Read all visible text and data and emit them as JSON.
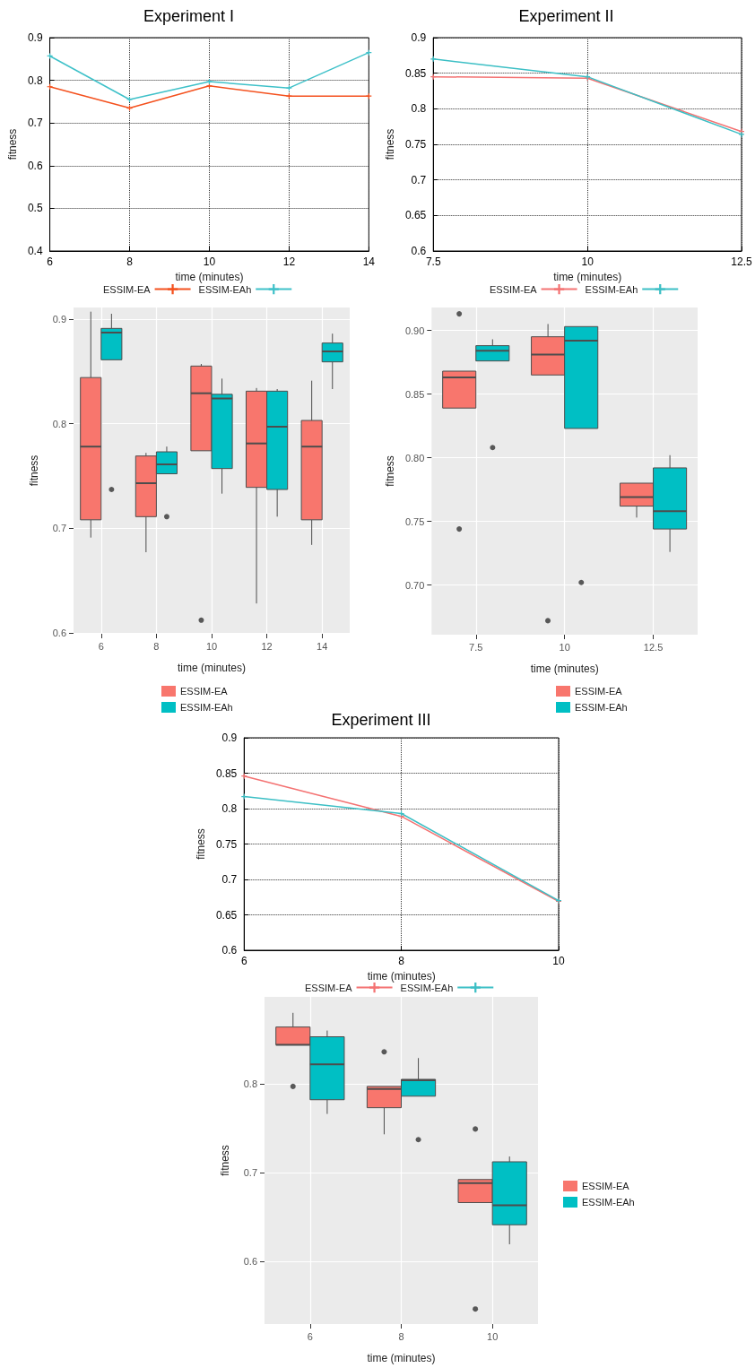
{
  "chart_data": [
    {
      "type": "line",
      "title": "Experiment I",
      "xlabel": "time (minutes)",
      "ylabel": "fitness",
      "x": [
        6,
        8,
        10,
        12,
        14
      ],
      "xlim": [
        6,
        14
      ],
      "xticks": [
        6,
        8,
        10,
        12,
        14
      ],
      "ylim": [
        0.4,
        0.9
      ],
      "yticks": [
        0.4,
        0.5,
        0.6,
        0.7,
        0.8,
        0.9
      ],
      "grid": true,
      "legend": "bottom",
      "marker": "cross",
      "line_style": "solid",
      "series": [
        {
          "name": "ESSIM-EA",
          "color": "#f4511e",
          "values": [
            0.785,
            0.735,
            0.787,
            0.763,
            0.763
          ]
        },
        {
          "name": "ESSIM-EAh",
          "color": "#3fc1c9",
          "values": [
            0.857,
            0.755,
            0.797,
            0.782,
            0.865
          ]
        }
      ]
    },
    {
      "type": "line",
      "title": "Experiment II",
      "xlabel": "time (minutes)",
      "ylabel": "fitness",
      "x": [
        7.5,
        10,
        12.5
      ],
      "xlim": [
        7.5,
        12.5
      ],
      "xticks": [
        7.5,
        10,
        12.5
      ],
      "ylim": [
        0.6,
        0.9
      ],
      "yticks": [
        0.6,
        0.65,
        0.7,
        0.75,
        0.8,
        0.85,
        0.9
      ],
      "grid": true,
      "legend": "bottom",
      "marker": "cross",
      "line_style": "solid",
      "series": [
        {
          "name": "ESSIM-EA",
          "color": "#f47272",
          "values": [
            0.845,
            0.843,
            0.768
          ]
        },
        {
          "name": "ESSIM-EAh",
          "color": "#3cbfc5",
          "values": [
            0.87,
            0.845,
            0.764
          ]
        }
      ]
    },
    {
      "type": "box",
      "xlabel": "time (minutes)",
      "ylabel": "fitness",
      "categories": [
        "6",
        "8",
        "10",
        "12",
        "14"
      ],
      "ylim": [
        0.599,
        0.911
      ],
      "yticks": [
        0.6,
        0.7,
        0.8,
        0.9
      ],
      "grid": true,
      "legend": "bottom",
      "series": [
        {
          "name": "ESSIM-EA",
          "color": "#f8766d",
          "boxes": [
            {
              "low": 0.691,
              "q1": 0.708,
              "median": 0.778,
              "q3": 0.844,
              "high": 0.907
            },
            {
              "low": 0.677,
              "q1": 0.711,
              "median": 0.743,
              "q3": 0.769,
              "high": 0.772
            },
            {
              "low": 0.774,
              "q1": 0.774,
              "median": 0.829,
              "q3": 0.855,
              "high": 0.857,
              "outliers": [
                0.612
              ]
            },
            {
              "low": 0.628,
              "q1": 0.739,
              "median": 0.781,
              "q3": 0.831,
              "high": 0.834
            },
            {
              "low": 0.684,
              "q1": 0.708,
              "median": 0.778,
              "q3": 0.803,
              "high": 0.841
            }
          ]
        },
        {
          "name": "ESSIM-EAh",
          "color": "#00bfc4",
          "boxes": [
            {
              "low": 0.861,
              "q1": 0.861,
              "median": 0.887,
              "q3": 0.891,
              "high": 0.905,
              "outliers": [
                0.737
              ]
            },
            {
              "low": 0.752,
              "q1": 0.752,
              "median": 0.761,
              "q3": 0.773,
              "high": 0.778,
              "outliers": [
                0.711
              ]
            },
            {
              "low": 0.733,
              "q1": 0.757,
              "median": 0.824,
              "q3": 0.828,
              "high": 0.843
            },
            {
              "low": 0.711,
              "q1": 0.737,
              "median": 0.797,
              "q3": 0.831,
              "high": 0.833
            },
            {
              "low": 0.833,
              "q1": 0.859,
              "median": 0.869,
              "q3": 0.877,
              "high": 0.886
            }
          ]
        }
      ]
    },
    {
      "type": "box",
      "xlabel": "time (minutes)",
      "ylabel": "fitness",
      "categories": [
        "7.5",
        "10",
        "12.5"
      ],
      "ylim": [
        0.661,
        0.918
      ],
      "yticks": [
        {
          "value": 0.7,
          "label": "0.70"
        },
        {
          "value": 0.75,
          "label": "0.75"
        },
        {
          "value": 0.8,
          "label": "0.80"
        },
        {
          "value": 0.85,
          "label": "0.85"
        },
        {
          "value": 0.9,
          "label": "0.90"
        }
      ],
      "grid": true,
      "legend": "bottom",
      "series": [
        {
          "name": "ESSIM-EA",
          "color": "#f8766d",
          "boxes": [
            {
              "low": 0.839,
              "q1": 0.839,
              "median": 0.863,
              "q3": 0.868,
              "high": 0.868,
              "outliers": [
                0.913,
                0.744
              ]
            },
            {
              "low": 0.865,
              "q1": 0.865,
              "median": 0.881,
              "q3": 0.895,
              "high": 0.905,
              "outliers": [
                0.672
              ]
            },
            {
              "low": 0.753,
              "q1": 0.762,
              "median": 0.769,
              "q3": 0.78,
              "high": 0.78
            }
          ]
        },
        {
          "name": "ESSIM-EAh",
          "color": "#00bfc4",
          "boxes": [
            {
              "low": 0.876,
              "q1": 0.876,
              "median": 0.884,
              "q3": 0.888,
              "high": 0.893,
              "outliers": [
                0.808
              ]
            },
            {
              "low": 0.823,
              "q1": 0.823,
              "median": 0.892,
              "q3": 0.903,
              "high": 0.903,
              "outliers": [
                0.702
              ]
            },
            {
              "low": 0.726,
              "q1": 0.744,
              "median": 0.758,
              "q3": 0.792,
              "high": 0.802
            }
          ]
        }
      ]
    },
    {
      "type": "line",
      "title": "Experiment III",
      "xlabel": "time (minutes)",
      "ylabel": "fitness",
      "x": [
        6,
        8,
        10
      ],
      "xlim": [
        6,
        10
      ],
      "xticks": [
        6,
        8,
        10
      ],
      "ylim": [
        0.6,
        0.9
      ],
      "yticks": [
        0.6,
        0.65,
        0.7,
        0.75,
        0.8,
        0.85,
        0.9
      ],
      "grid": true,
      "legend": "bottom",
      "marker": "cross",
      "line_style": "solid",
      "series": [
        {
          "name": "ESSIM-EA",
          "color": "#f47272",
          "values": [
            0.846,
            0.789,
            0.669
          ]
        },
        {
          "name": "ESSIM-EAh",
          "color": "#3cbfc5",
          "values": [
            0.817,
            0.793,
            0.67
          ]
        }
      ]
    },
    {
      "type": "box",
      "xlabel": "time (minutes)",
      "ylabel": "fitness",
      "categories": [
        "6",
        "8",
        "10"
      ],
      "ylim": [
        0.529,
        0.898
      ],
      "yticks": [
        0.6,
        0.7,
        0.8
      ],
      "grid": true,
      "legend": "right",
      "series": [
        {
          "name": "ESSIM-EA",
          "color": "#f8766d",
          "boxes": [
            {
              "low": 0.844,
              "q1": 0.844,
              "median": 0.844,
              "q3": 0.864,
              "high": 0.88,
              "outliers": [
                0.797
              ]
            },
            {
              "low": 0.743,
              "q1": 0.773,
              "median": 0.794,
              "q3": 0.797,
              "high": 0.797,
              "outliers": [
                0.836
              ]
            },
            {
              "low": 0.666,
              "q1": 0.666,
              "median": 0.688,
              "q3": 0.692,
              "high": 0.692,
              "outliers": [
                0.749,
                0.546
              ]
            }
          ]
        },
        {
          "name": "ESSIM-EAh",
          "color": "#00bfc4",
          "boxes": [
            {
              "low": 0.766,
              "q1": 0.782,
              "median": 0.822,
              "q3": 0.853,
              "high": 0.86
            },
            {
              "low": 0.786,
              "q1": 0.786,
              "median": 0.804,
              "q3": 0.805,
              "high": 0.829,
              "outliers": [
                0.737
              ]
            },
            {
              "low": 0.619,
              "q1": 0.641,
              "median": 0.663,
              "q3": 0.712,
              "high": 0.718
            }
          ]
        }
      ]
    }
  ]
}
